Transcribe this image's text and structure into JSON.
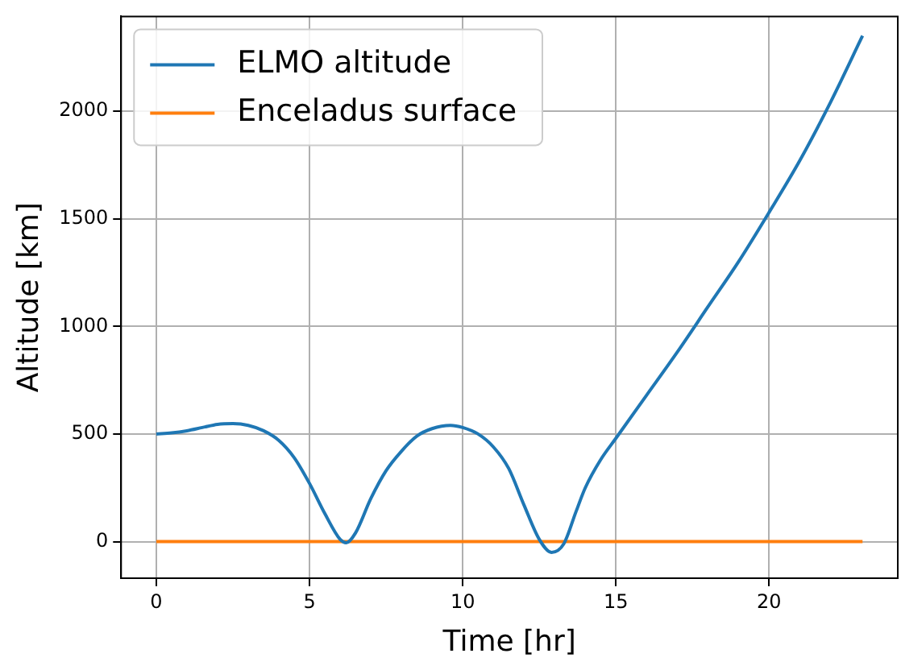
{
  "chart_data": {
    "type": "line",
    "xlabel": "Time [hr]",
    "ylabel": "Altitude [km]",
    "xlim": [
      -1.15,
      24.2
    ],
    "ylim": [
      -170,
      2440
    ],
    "xticks": [
      0,
      5,
      10,
      15,
      20
    ],
    "yticks": [
      0,
      500,
      1000,
      1500,
      2000
    ],
    "grid": true,
    "legend": "top left",
    "marker": "none",
    "line_style": "solid",
    "series": [
      {
        "name": "ELMO altitude",
        "color": "#1f77b4",
        "x": [
          0,
          0.5,
          1,
          1.5,
          2,
          2.5,
          3,
          3.5,
          4,
          4.5,
          5,
          5.5,
          6,
          6.2,
          6.5,
          7,
          7.5,
          8,
          8.5,
          9,
          9.6,
          10,
          10.5,
          11,
          11.5,
          12,
          12.5,
          12.9,
          13.3,
          13.7,
          14,
          14.5,
          15,
          16,
          17,
          18,
          19,
          20,
          21,
          22,
          23.05
        ],
        "values": [
          500,
          505,
          515,
          530,
          545,
          548,
          540,
          515,
          470,
          390,
          270,
          130,
          10,
          -5,
          40,
          200,
          330,
          420,
          490,
          525,
          540,
          530,
          500,
          440,
          340,
          170,
          10,
          -50,
          -10,
          140,
          250,
          380,
          480,
          680,
          880,
          1090,
          1300,
          1530,
          1770,
          2040,
          2350
        ]
      },
      {
        "name": "Enceladus surface",
        "color": "#ff7f0e",
        "x": [
          0,
          23.05
        ],
        "values": [
          0,
          0
        ]
      }
    ]
  }
}
